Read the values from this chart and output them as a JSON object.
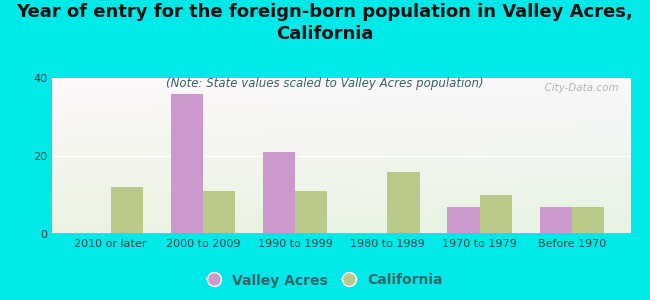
{
  "title": "Year of entry for the foreign-born population in Valley Acres,\nCalifornia",
  "subtitle": "(Note: State values scaled to Valley Acres population)",
  "categories": [
    "2010 or later",
    "2000 to 2009",
    "1990 to 1999",
    "1980 to 1989",
    "1970 to 1979",
    "Before 1970"
  ],
  "valley_acres": [
    0,
    36,
    21,
    0,
    7,
    7
  ],
  "california": [
    12,
    11,
    11,
    16,
    10,
    7
  ],
  "valley_acres_color": "#cc99cc",
  "california_color": "#b8c98a",
  "background_color": "#00e8e8",
  "ylim": [
    0,
    40
  ],
  "yticks": [
    0,
    20,
    40
  ],
  "bar_width": 0.35,
  "title_fontsize": 13,
  "subtitle_fontsize": 8.5,
  "legend_fontsize": 10,
  "tick_fontsize": 8,
  "watermark": "  City-Data.com"
}
